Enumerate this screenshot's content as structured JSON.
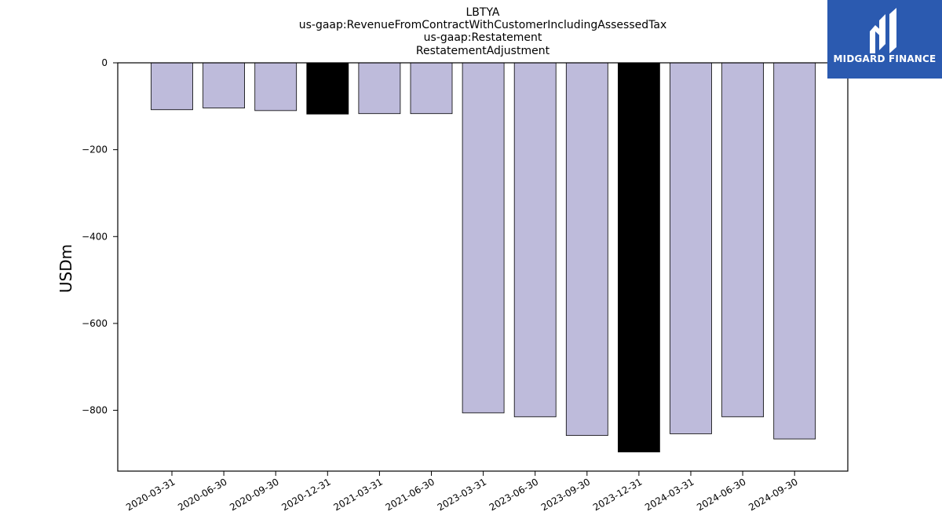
{
  "brand": {
    "name": "MIDGARD FINANCE",
    "logo_icon": "midgard-m-logo-icon",
    "color": "#2b5ab0"
  },
  "chart_data": {
    "type": "bar",
    "title_lines": [
      "LBTYA",
      "us-gaap:RevenueFromContractWithCustomerIncludingAssessedTax",
      "us-gaap:Restatement",
      "RestatementAdjustment"
    ],
    "xlabel": "",
    "ylabel": "USDm",
    "categories": [
      "2020-03-31",
      "2020-06-30",
      "2020-09-30",
      "2020-12-31",
      "2021-03-31",
      "2021-06-30",
      "2023-03-31",
      "2023-06-30",
      "2023-09-30",
      "2023-12-31",
      "2024-03-31",
      "2024-06-30",
      "2024-09-30"
    ],
    "values": [
      -108,
      -104,
      -110,
      -118,
      -117,
      -117,
      -806,
      -815,
      -858,
      -896,
      -854,
      -815,
      -866
    ],
    "highlighted": [
      "2020-12-31",
      "2023-12-31"
    ],
    "ylim": [
      -940,
      0
    ],
    "yticks": [
      0,
      -200,
      -400,
      -600,
      -800
    ],
    "ytick_labels": [
      "0",
      "−200",
      "−400",
      "−600",
      "−800"
    ],
    "colors": {
      "bar": "#bebbdb",
      "highlight": "#000000",
      "edge": "#000000"
    },
    "grid": false,
    "legend": "none"
  }
}
